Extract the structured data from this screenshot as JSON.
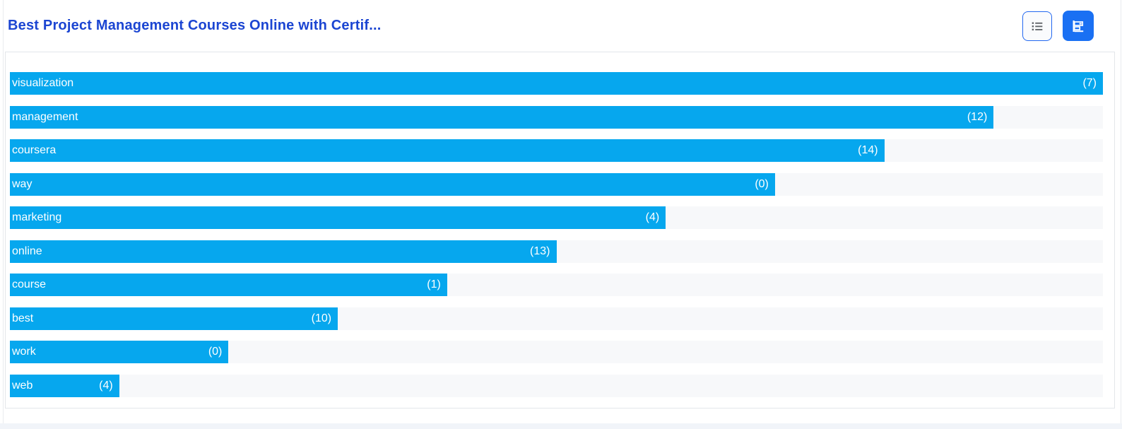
{
  "header": {
    "title": "Best Project Management Courses Online with Certif...",
    "view_buttons": {
      "list_view_icon": "list-icon",
      "chart_view_icon": "horizontal-bar-chart-icon",
      "active_view": "chart"
    }
  },
  "colors": {
    "title_blue": "#1b45d2",
    "bar_blue": "#06a7ee",
    "bar_track_gray": "#f7f8fa",
    "active_button_blue": "#1a70f3",
    "button_border_blue": "#2368f0",
    "icon_gray": "#5f6368",
    "card_border": "#e3e6ea"
  },
  "chart_data": {
    "type": "bar",
    "orientation": "horizontal",
    "title": "Best Project Management Courses Online with Certif...",
    "categories": [
      "visualization",
      "management",
      "coursera",
      "way",
      "marketing",
      "online",
      "course",
      "best",
      "work",
      "web"
    ],
    "counts": [
      7,
      12,
      14,
      0,
      4,
      13,
      1,
      10,
      0,
      4
    ],
    "count_labels": [
      "(7)",
      "(12)",
      "(14)",
      "(0)",
      "(4)",
      "(13)",
      "(1)",
      "(10)",
      "(0)",
      "(4)"
    ],
    "bar_width_percent": [
      100,
      90,
      80,
      70,
      60,
      50,
      40,
      30,
      20,
      10
    ],
    "xlabel": "",
    "ylabel": "",
    "legend": "none",
    "grid": "off",
    "value_labels": "inside-end",
    "category_labels": "inside-start"
  }
}
